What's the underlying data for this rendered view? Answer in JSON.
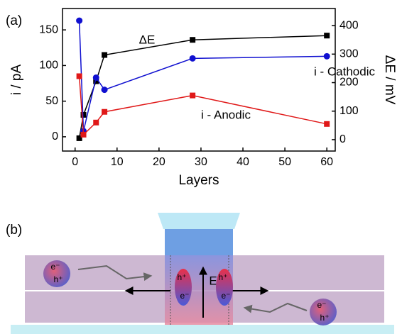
{
  "chart_data": {
    "type": "line",
    "panel_label": "(a)",
    "xlabel": "Layers",
    "ylabel": "i / pA",
    "y2label": "ΔE / mV",
    "x": [
      1,
      2,
      5,
      7,
      28,
      60
    ],
    "xlim": [
      -3,
      62
    ],
    "xticks": [
      0,
      10,
      20,
      30,
      40,
      50,
      60
    ],
    "ylim": [
      -20,
      180
    ],
    "yticks": [
      0,
      50,
      100,
      150
    ],
    "y2lim": [
      -40,
      460
    ],
    "y2ticks": [
      0,
      100,
      200,
      300,
      400
    ],
    "series": [
      {
        "name": "ΔE",
        "color": "#000000",
        "marker": "square",
        "axis": "y2",
        "values": [
          5,
          87,
          205,
          297,
          350,
          365
        ]
      },
      {
        "name": "i - Cathodic",
        "color": "#1010d0",
        "marker": "circle",
        "axis": "y",
        "values": [
          163,
          8,
          83,
          66,
          110,
          113
        ]
      },
      {
        "name": "i - Anodic",
        "color": "#e01818",
        "marker": "square",
        "axis": "y",
        "values": [
          85,
          3,
          20,
          35,
          58,
          18
        ]
      }
    ]
  },
  "panel_b": {
    "label": "(b)",
    "field_label": "E",
    "particles": [
      {
        "top": "e⁻",
        "bottom": "h⁺"
      },
      {
        "top": "h⁺",
        "bottom": "e⁻"
      },
      {
        "top": "h⁺",
        "bottom": "e⁻"
      },
      {
        "top": "e⁻",
        "bottom": "h⁺"
      }
    ]
  }
}
